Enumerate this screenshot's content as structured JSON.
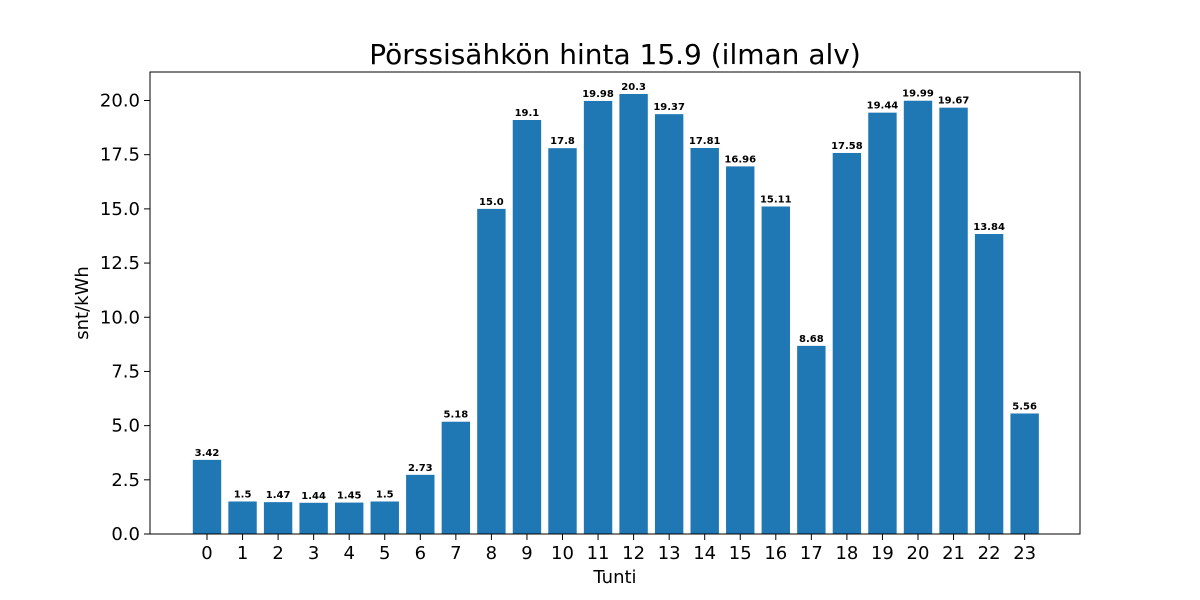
{
  "chart_data": {
    "type": "bar",
    "title": "Pörssisähkön hinta 15.9 (ilman alv)",
    "xlabel": "Tunti",
    "ylabel": "snt/kWh",
    "categories": [
      "0",
      "1",
      "2",
      "3",
      "4",
      "5",
      "6",
      "7",
      "8",
      "9",
      "10",
      "11",
      "12",
      "13",
      "14",
      "15",
      "16",
      "17",
      "18",
      "19",
      "20",
      "21",
      "22",
      "23"
    ],
    "values": [
      3.42,
      1.5,
      1.47,
      1.44,
      1.45,
      1.5,
      2.73,
      5.18,
      15.0,
      19.1,
      17.8,
      19.98,
      20.3,
      19.37,
      17.81,
      16.96,
      15.11,
      8.68,
      17.58,
      19.44,
      19.99,
      19.67,
      13.84,
      5.56
    ],
    "value_labels": [
      "3.42",
      "1.5",
      "1.47",
      "1.44",
      "1.45",
      "1.5",
      "2.73",
      "5.18",
      "15.0",
      "19.1",
      "17.8",
      "19.98",
      "20.3",
      "19.37",
      "17.81",
      "16.96",
      "15.11",
      "8.68",
      "17.58",
      "19.44",
      "19.99",
      "19.67",
      "13.84",
      "5.56"
    ],
    "ylim": [
      0,
      21.315
    ],
    "yticks": [
      0.0,
      2.5,
      5.0,
      7.5,
      10.0,
      12.5,
      15.0,
      17.5,
      20.0
    ],
    "ytick_labels": [
      "0.0",
      "2.5",
      "5.0",
      "7.5",
      "10.0",
      "12.5",
      "15.0",
      "17.5",
      "20.0"
    ],
    "grid": false,
    "legend": "none",
    "bar_color": "#1f77b4"
  }
}
